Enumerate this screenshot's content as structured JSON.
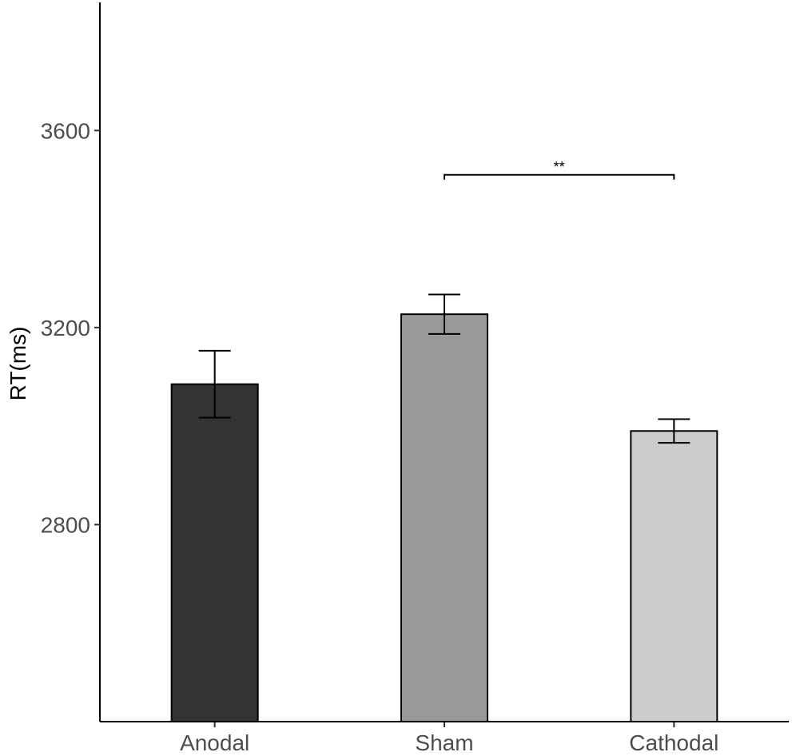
{
  "chart_data": {
    "type": "bar",
    "title": "",
    "xlabel": "",
    "ylabel": "RT(ms)",
    "categories": [
      "Anodal",
      "Sham",
      "Cathodal"
    ],
    "values": [
      3085,
      3227,
      2990
    ],
    "error": [
      68,
      40,
      24
    ],
    "colors": [
      "#333333",
      "#999999",
      "#cccccc"
    ],
    "ylim": [
      2400,
      3860
    ],
    "yticks": [
      2800,
      3200,
      3600
    ],
    "ytick_labels": [
      "2800",
      "3200",
      "3600"
    ],
    "grid": false,
    "legend": "none",
    "significance": {
      "from": "Sham",
      "to": "Cathodal",
      "label": "**",
      "y": 3510
    }
  }
}
